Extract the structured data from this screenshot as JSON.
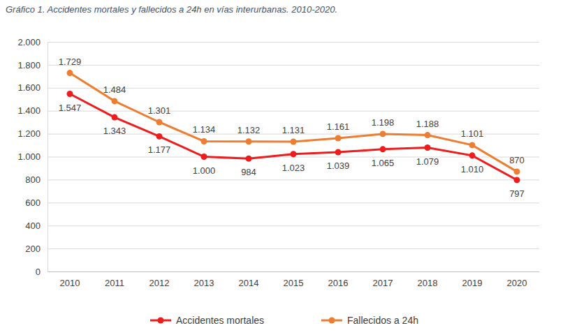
{
  "chart_data": {
    "type": "line",
    "title": "Gráfico 1. Accidentes mortales y fallecidos a 24h en vías interurbanas. 2010-2020.",
    "categories": [
      "2010",
      "2011",
      "2012",
      "2013",
      "2014",
      "2015",
      "2016",
      "2017",
      "2018",
      "2019",
      "2020"
    ],
    "series": [
      {
        "name": "Accidentes mortales",
        "color": "#ee1c1c",
        "marker": "circle",
        "values": [
          1547,
          1343,
          1177,
          1000,
          984,
          1023,
          1039,
          1065,
          1079,
          1010,
          797
        ],
        "value_labels": [
          "1.547",
          "1.343",
          "1.177",
          "1.000",
          "984",
          "1.023",
          "1.039",
          "1.065",
          "1.079",
          "1.010",
          "797"
        ]
      },
      {
        "name": "Fallecidos a 24h",
        "color": "#ed7d31",
        "marker": "circle",
        "values": [
          1729,
          1484,
          1301,
          1134,
          1132,
          1131,
          1161,
          1198,
          1188,
          1101,
          870
        ],
        "value_labels": [
          "1.729",
          "1.484",
          "1.301",
          "1.134",
          "1.132",
          "1.131",
          "1.161",
          "1.198",
          "1.188",
          "1.101",
          "870"
        ]
      }
    ],
    "ylim": [
      0,
      2000
    ],
    "yticks": [
      0,
      200,
      400,
      600,
      800,
      {
        "value": 1000,
        "label": "1.000"
      },
      {
        "value": 1200,
        "label": "1.200"
      },
      {
        "value": 1400,
        "label": "1.400"
      },
      {
        "value": 1600,
        "label": "1.600"
      },
      {
        "value": 1800,
        "label": "1.800"
      },
      {
        "value": 2000,
        "label": "2.000"
      }
    ],
    "grid": true,
    "legend": "bottom",
    "data_labels": true
  }
}
